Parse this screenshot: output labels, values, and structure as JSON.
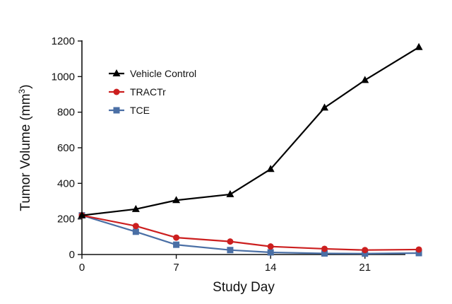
{
  "chart_data": {
    "type": "line",
    "xlabel": "Study Day",
    "ylabel_main": "Tumor Volume (mm",
    "ylabel_sup": "3",
    "ylabel_close": ")",
    "xlim": [
      0,
      24
    ],
    "ylim": [
      0,
      1200
    ],
    "x_ticks": [
      0,
      7,
      14,
      21
    ],
    "y_ticks": [
      0,
      200,
      400,
      600,
      800,
      1000,
      1200
    ],
    "x_tick_labels": [
      "0",
      "7",
      "14",
      "21"
    ],
    "y_tick_labels": [
      "0",
      "200",
      "400",
      "600",
      "800",
      "1000",
      "1200"
    ],
    "grid": false,
    "legend_position": "top-left",
    "series": [
      {
        "name": "Vehicle Control",
        "color": "#000000",
        "marker": "triangle",
        "x": [
          0,
          4,
          7,
          11,
          14,
          18,
          21,
          25
        ],
        "y": [
          220,
          255,
          305,
          338,
          480,
          825,
          980,
          1165
        ]
      },
      {
        "name": "TRACTr",
        "color": "#cc1f1f",
        "marker": "circle",
        "x": [
          0,
          4,
          7,
          11,
          14,
          18,
          21,
          25
        ],
        "y": [
          220,
          160,
          95,
          73,
          45,
          32,
          25,
          28
        ]
      },
      {
        "name": "TCE",
        "color": "#4a6fa5",
        "marker": "square",
        "x": [
          0,
          4,
          7,
          11,
          14,
          18,
          21,
          25
        ],
        "y": [
          220,
          128,
          55,
          25,
          12,
          6,
          5,
          8
        ]
      }
    ]
  }
}
